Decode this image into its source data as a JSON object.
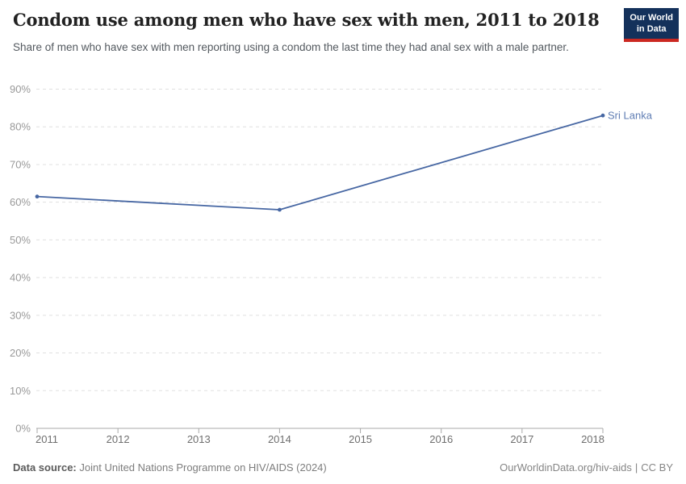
{
  "header": {
    "title": "Condom use among men who have sex with men, 2011 to 2018",
    "subtitle": "Share of men who have sex with men reporting using a condom the last time they had anal sex with a male partner.",
    "logo": {
      "line1": "Our World",
      "line2": "in Data",
      "bg_color": "#14315b",
      "accent_color": "#cb2821"
    }
  },
  "chart_data": {
    "type": "line",
    "title": "Condom use among men who have sex with men, 2011 to 2018",
    "series": [
      {
        "name": "Sri Lanka",
        "color": "#4767a3",
        "label_color": "#5f7db3",
        "points": [
          {
            "x": 2011,
            "y": 61.5
          },
          {
            "x": 2014,
            "y": 58
          },
          {
            "x": 2018,
            "y": 83
          }
        ]
      }
    ],
    "x_ticks": [
      2011,
      2012,
      2013,
      2014,
      2015,
      2016,
      2017,
      2018
    ],
    "y_ticks": [
      0,
      10,
      20,
      30,
      40,
      50,
      60,
      70,
      80,
      90
    ],
    "y_tick_suffix": "%",
    "xlim": [
      2011,
      2018
    ],
    "ylim": [
      0,
      90
    ],
    "grid": "horizontal-dashed",
    "legend_position": "end-of-line",
    "grid_color": "#e0e0e0",
    "axis_color": "#a8a8a8",
    "y_label_color": "#999999",
    "x_label_color": "#6e6e6e"
  },
  "footer": {
    "source_label": "Data source:",
    "source_text": "Joint United Nations Programme on HIV/AIDS (2024)",
    "link_text": "OurWorldinData.org/hiv-aids",
    "divider": "|",
    "license_text": "CC BY"
  }
}
